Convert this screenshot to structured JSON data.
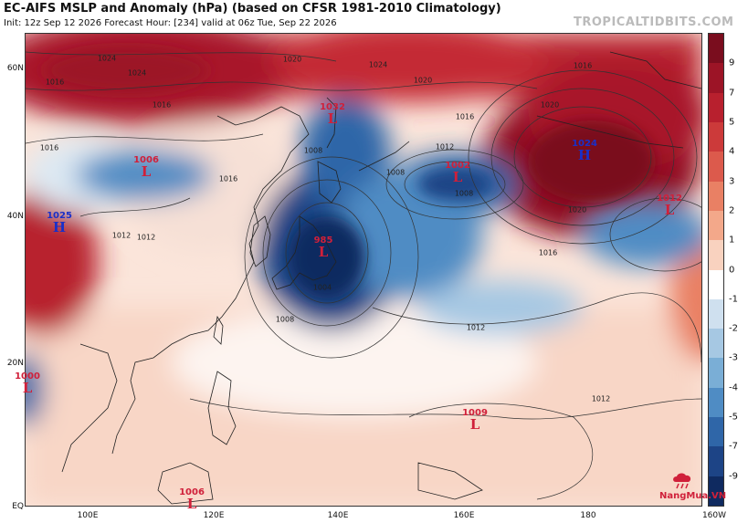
{
  "header": {
    "title": "EC-AIFS MSLP and Anomaly (hPa) (based on CFSR 1981-2010 Climatology)",
    "subtitle": "Init: 12z Sep 12 2026   Forecast Hour: [234]   valid at 06z Tue, Sep 22 2026",
    "brand": "TROPICALTIDBITS.COM"
  },
  "axes": {
    "lat_labels": [
      "60N",
      "40N",
      "20N",
      "EQ"
    ],
    "lon_labels": [
      "100E",
      "120E",
      "140E",
      "160E",
      "180",
      "160W"
    ]
  },
  "colorbar": {
    "ticks": [
      "9",
      "7",
      "5",
      "4",
      "3",
      "2",
      "1",
      "0",
      "-1",
      "-2",
      "-3",
      "-4",
      "-5",
      "-7",
      "-9"
    ],
    "colors": [
      "#7a0d1e",
      "#9c1426",
      "#b8202e",
      "#cc3a3a",
      "#dc5a4c",
      "#e98064",
      "#f3a88a",
      "#f9d2bf",
      "#ffffff",
      "#cfe0ef",
      "#a6c8e3",
      "#7aaed6",
      "#4f8cc4",
      "#2f66a8",
      "#1d4486",
      "#0f2a60"
    ]
  },
  "pressure_centers": [
    {
      "type": "L",
      "value": "1032"
    },
    {
      "type": "L",
      "value": "1006"
    },
    {
      "type": "L",
      "value": "1002"
    },
    {
      "type": "H",
      "value": "1024"
    },
    {
      "type": "L",
      "value": "1012"
    },
    {
      "type": "H",
      "value": "1025"
    },
    {
      "type": "L",
      "value": "985"
    },
    {
      "type": "L",
      "value": "1000"
    },
    {
      "type": "L",
      "value": "1009"
    },
    {
      "type": "L",
      "value": "1006"
    }
  ],
  "isobar_labels": [
    "1024",
    "1020",
    "1016",
    "1016",
    "1024",
    "1020",
    "1016",
    "1012",
    "1008",
    "1008",
    "1020",
    "1016",
    "1012",
    "1008",
    "1004",
    "1008",
    "1012",
    "1012",
    "1020",
    "1016",
    "1016",
    "1012",
    "1024",
    "1016"
  ],
  "logo": {
    "text": "NangMua.VN"
  }
}
